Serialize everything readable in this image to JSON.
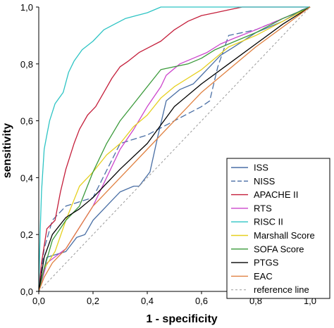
{
  "chart_data": {
    "type": "line",
    "xlabel": "1 - specificity",
    "ylabel": "sensitivity",
    "xlim": [
      0,
      1
    ],
    "ylim": [
      0,
      1
    ],
    "x_ticks": [
      "0,0",
      "0,2",
      "0,4",
      "0,6",
      "0,8",
      "1,0"
    ],
    "y_ticks": [
      "0,0",
      "0,2",
      "0,4",
      "0,6",
      "0,8",
      "1,0"
    ],
    "grid": false,
    "legend_position": "bottom-right",
    "series": [
      {
        "name": "ISS",
        "color": "#4a6fa5",
        "dash": "solid",
        "points": [
          [
            0,
            0
          ],
          [
            0.03,
            0.12
          ],
          [
            0.1,
            0.14
          ],
          [
            0.14,
            0.19
          ],
          [
            0.17,
            0.2
          ],
          [
            0.2,
            0.25
          ],
          [
            0.27,
            0.32
          ],
          [
            0.3,
            0.35
          ],
          [
            0.35,
            0.37
          ],
          [
            0.37,
            0.37
          ],
          [
            0.41,
            0.42
          ],
          [
            0.44,
            0.55
          ],
          [
            0.47,
            0.67
          ],
          [
            0.52,
            0.71
          ],
          [
            0.57,
            0.73
          ],
          [
            0.6,
            0.76
          ],
          [
            0.63,
            0.79
          ],
          [
            0.67,
            0.83
          ],
          [
            0.72,
            0.86
          ],
          [
            0.8,
            0.91
          ],
          [
            0.9,
            0.95
          ],
          [
            0.97,
            0.99
          ],
          [
            1,
            1
          ]
        ]
      },
      {
        "name": "NISS",
        "color": "#4a6fa5",
        "dash": "dash",
        "points": [
          [
            0,
            0
          ],
          [
            0.02,
            0.15
          ],
          [
            0.05,
            0.25
          ],
          [
            0.1,
            0.3
          ],
          [
            0.2,
            0.33
          ],
          [
            0.3,
            0.52
          ],
          [
            0.4,
            0.55
          ],
          [
            0.5,
            0.6
          ],
          [
            0.6,
            0.65
          ],
          [
            0.63,
            0.67
          ],
          [
            0.66,
            0.79
          ],
          [
            0.7,
            0.9
          ],
          [
            0.8,
            0.92
          ],
          [
            0.9,
            0.96
          ],
          [
            1,
            1
          ]
        ]
      },
      {
        "name": "APACHE II",
        "color": "#c41e3a",
        "dash": "solid",
        "points": [
          [
            0,
            0
          ],
          [
            0.01,
            0.1
          ],
          [
            0.03,
            0.22
          ],
          [
            0.06,
            0.25
          ],
          [
            0.08,
            0.35
          ],
          [
            0.1,
            0.43
          ],
          [
            0.13,
            0.52
          ],
          [
            0.15,
            0.57
          ],
          [
            0.18,
            0.62
          ],
          [
            0.21,
            0.65
          ],
          [
            0.24,
            0.7
          ],
          [
            0.27,
            0.75
          ],
          [
            0.3,
            0.79
          ],
          [
            0.33,
            0.81
          ],
          [
            0.37,
            0.84
          ],
          [
            0.41,
            0.86
          ],
          [
            0.45,
            0.88
          ],
          [
            0.5,
            0.92
          ],
          [
            0.55,
            0.95
          ],
          [
            0.6,
            0.97
          ],
          [
            0.65,
            0.98
          ],
          [
            0.7,
            0.99
          ],
          [
            0.75,
            1
          ],
          [
            1,
            1
          ]
        ]
      },
      {
        "name": "RTS",
        "color": "#cc44cc",
        "dash": "solid",
        "points": [
          [
            0,
            0
          ],
          [
            0.03,
            0.1
          ],
          [
            0.1,
            0.15
          ],
          [
            0.2,
            0.3
          ],
          [
            0.3,
            0.5
          ],
          [
            0.35,
            0.57
          ],
          [
            0.4,
            0.65
          ],
          [
            0.45,
            0.72
          ],
          [
            0.47,
            0.76
          ],
          [
            0.52,
            0.8
          ],
          [
            0.57,
            0.82
          ],
          [
            0.62,
            0.84
          ],
          [
            0.67,
            0.87
          ],
          [
            0.72,
            0.89
          ],
          [
            0.8,
            0.92
          ],
          [
            0.9,
            0.96
          ],
          [
            1,
            1
          ]
        ]
      },
      {
        "name": "RISC II",
        "color": "#2ec4c4",
        "dash": "solid",
        "points": [
          [
            0,
            0
          ],
          [
            0.005,
            0.2
          ],
          [
            0.01,
            0.35
          ],
          [
            0.02,
            0.5
          ],
          [
            0.03,
            0.55
          ],
          [
            0.04,
            0.6
          ],
          [
            0.06,
            0.66
          ],
          [
            0.09,
            0.7
          ],
          [
            0.11,
            0.77
          ],
          [
            0.13,
            0.81
          ],
          [
            0.16,
            0.85
          ],
          [
            0.2,
            0.88
          ],
          [
            0.24,
            0.92
          ],
          [
            0.28,
            0.94
          ],
          [
            0.32,
            0.96
          ],
          [
            0.36,
            0.97
          ],
          [
            0.4,
            0.98
          ],
          [
            0.45,
            1
          ],
          [
            1,
            1
          ]
        ]
      },
      {
        "name": "Marshall Score",
        "color": "#e6d020",
        "dash": "solid",
        "points": [
          [
            0,
            0
          ],
          [
            0.02,
            0.08
          ],
          [
            0.06,
            0.14
          ],
          [
            0.1,
            0.25
          ],
          [
            0.15,
            0.37
          ],
          [
            0.2,
            0.42
          ],
          [
            0.25,
            0.48
          ],
          [
            0.3,
            0.52
          ],
          [
            0.35,
            0.58
          ],
          [
            0.4,
            0.62
          ],
          [
            0.45,
            0.68
          ],
          [
            0.5,
            0.72
          ],
          [
            0.6,
            0.78
          ],
          [
            0.7,
            0.86
          ],
          [
            0.8,
            0.9
          ],
          [
            0.9,
            0.95
          ],
          [
            1,
            1
          ]
        ]
      },
      {
        "name": "SOFA Score",
        "color": "#3a9a3a",
        "dash": "solid",
        "points": [
          [
            0,
            0
          ],
          [
            0.02,
            0.08
          ],
          [
            0.05,
            0.18
          ],
          [
            0.1,
            0.25
          ],
          [
            0.15,
            0.3
          ],
          [
            0.2,
            0.42
          ],
          [
            0.25,
            0.52
          ],
          [
            0.3,
            0.6
          ],
          [
            0.35,
            0.66
          ],
          [
            0.4,
            0.72
          ],
          [
            0.45,
            0.78
          ],
          [
            0.5,
            0.79
          ],
          [
            0.55,
            0.8
          ],
          [
            0.6,
            0.82
          ],
          [
            0.65,
            0.85
          ],
          [
            0.7,
            0.87
          ],
          [
            0.75,
            0.89
          ],
          [
            0.8,
            0.91
          ],
          [
            0.9,
            0.96
          ],
          [
            1,
            1
          ]
        ]
      },
      {
        "name": "PTGS",
        "color": "#000000",
        "dash": "solid",
        "points": [
          [
            0,
            0
          ],
          [
            0.02,
            0.12
          ],
          [
            0.05,
            0.2
          ],
          [
            0.1,
            0.26
          ],
          [
            0.15,
            0.29
          ],
          [
            0.2,
            0.33
          ],
          [
            0.3,
            0.43
          ],
          [
            0.4,
            0.52
          ],
          [
            0.5,
            0.65
          ],
          [
            0.6,
            0.73
          ],
          [
            0.7,
            0.8
          ],
          [
            0.8,
            0.87
          ],
          [
            0.9,
            0.94
          ],
          [
            1,
            1
          ]
        ]
      },
      {
        "name": "EAC",
        "color": "#e08040",
        "dash": "solid",
        "points": [
          [
            0,
            0
          ],
          [
            0.02,
            0.05
          ],
          [
            0.05,
            0.1
          ],
          [
            0.1,
            0.15
          ],
          [
            0.2,
            0.3
          ],
          [
            0.3,
            0.4
          ],
          [
            0.4,
            0.5
          ],
          [
            0.5,
            0.6
          ],
          [
            0.6,
            0.7
          ],
          [
            0.7,
            0.78
          ],
          [
            0.8,
            0.86
          ],
          [
            0.9,
            0.93
          ],
          [
            1,
            1
          ]
        ]
      },
      {
        "name": "reference line",
        "color": "#999999",
        "dash": "dot",
        "points": [
          [
            0,
            0
          ],
          [
            1,
            1
          ]
        ]
      }
    ]
  }
}
